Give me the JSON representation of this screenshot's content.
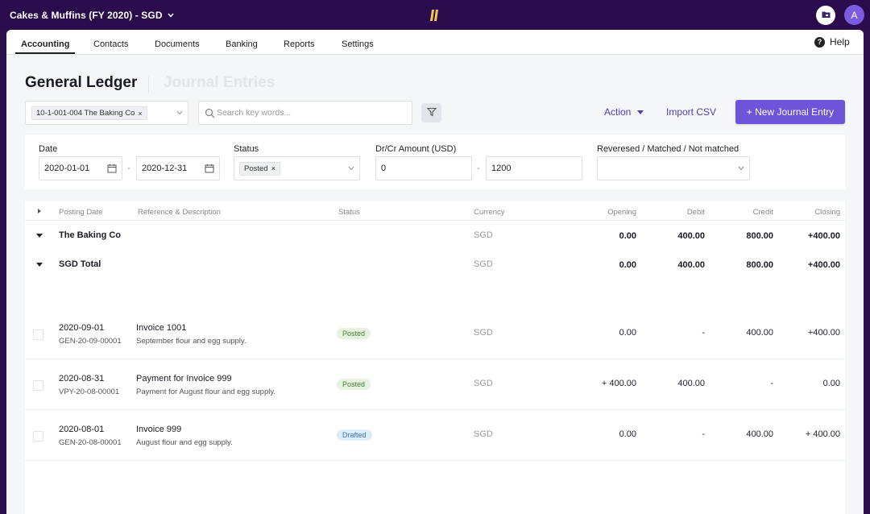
{
  "topbar": {
    "org_label": "Cakes & Muffins (FY 2020) - SGD",
    "avatar_initial": "A",
    "colors": {
      "background": "#2a0c4c",
      "logo": "#f2c94c",
      "avatar": "#7b5ce0"
    }
  },
  "nav": {
    "tabs": [
      {
        "label": "Accounting",
        "active": true
      },
      {
        "label": "Contacts"
      },
      {
        "label": "Documents"
      },
      {
        "label": "Banking"
      },
      {
        "label": "Reports"
      },
      {
        "label": "Settings"
      }
    ],
    "help_label": "Help"
  },
  "page": {
    "title": "General Ledger",
    "alt_title": "Journal Entries"
  },
  "toolbar": {
    "account_chip": "10-1-001-004 The Baking Co",
    "search_placeholder": "Search key words...",
    "action_label": "Action",
    "import_label": "Import CSV",
    "new_entry_label": "+ New Journal Entry",
    "accent_color": "#6c55d8"
  },
  "filters": {
    "date_label": "Date",
    "date_from": "2020-01-01",
    "date_to": "2020-12-31",
    "status_label": "Status",
    "status_chip": "Posted",
    "amount_label": "Dr/Cr Amount (USD)",
    "amount_min": "0",
    "amount_max": "1200",
    "match_label": "Reveresed / Matched / Not matched",
    "separator": "-"
  },
  "table": {
    "headers": {
      "posting_date": "Posting Date",
      "ref_desc": "Reference & Description",
      "status": "Status",
      "currency": "Currency",
      "opening": "Opening",
      "debit": "Debit",
      "credit": "Credit",
      "closing": "Closing"
    },
    "groups": [
      {
        "name": "The Baking Co",
        "currency": "SGD",
        "opening": "0.00",
        "debit": "400.00",
        "credit": "800.00",
        "closing": "+400.00"
      },
      {
        "name": "SGD Total",
        "currency": "SGD",
        "opening": "0.00",
        "debit": "400.00",
        "credit": "800.00",
        "closing": "+400.00"
      }
    ],
    "rows": [
      {
        "date": "2020-09-01",
        "ref": "GEN-20-09-00001",
        "title": "Invoice 1001",
        "description": "September flour and egg supply.",
        "status": "Posted",
        "currency": "SGD",
        "opening": "0.00",
        "debit": "-",
        "credit": "400.00",
        "closing": "+400.00"
      },
      {
        "date": "2020-08-31",
        "ref": "VPY-20-08-00001",
        "title": "Payment for Invoice 999",
        "description": "Payment for August flour and egg supply.",
        "status": "Posted",
        "currency": "SGD",
        "opening": "+ 400.00",
        "debit": "400.00",
        "credit": "-",
        "closing": "0.00"
      },
      {
        "date": "2020-08-01",
        "ref": "GEN-20-08-00001",
        "title": "Invoice 999",
        "description": "August flour and egg supply.",
        "status": "Drafted",
        "currency": "SGD",
        "opening": "0.00",
        "debit": "-",
        "credit": "400.00",
        "closing": "+ 400.00"
      }
    ]
  }
}
